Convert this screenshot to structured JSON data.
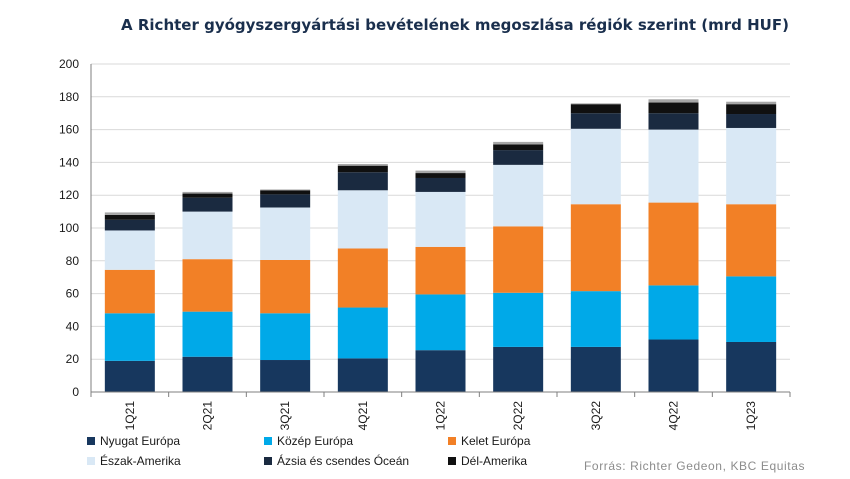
{
  "chart_data": {
    "type": "bar",
    "stacked": true,
    "title": "A Richter gyógyszergyártási bevételének megoszlása régiók szerint (mrd HUF)",
    "categories": [
      "1Q21",
      "2Q21",
      "3Q21",
      "4Q21",
      "1Q22",
      "2Q22",
      "3Q22",
      "4Q22",
      "1Q23"
    ],
    "series": [
      {
        "name": "Nyugat Európa",
        "color": "#17375e",
        "values": [
          19,
          21.5,
          19.5,
          20.5,
          25.5,
          27.5,
          27.5,
          32,
          30.5
        ]
      },
      {
        "name": "Közép Európa",
        "color": "#00a9e8",
        "values": [
          29,
          27.5,
          28.5,
          31,
          34,
          33,
          34,
          33,
          40
        ]
      },
      {
        "name": "Kelet Európa",
        "color": "#f28026",
        "values": [
          26.5,
          32,
          32.5,
          36,
          29,
          40.5,
          53,
          50.5,
          44
        ]
      },
      {
        "name": "Észak-Amerika",
        "color": "#d9e8f5",
        "values": [
          24,
          29,
          32,
          35.5,
          33.5,
          37.5,
          46,
          44.5,
          46.5
        ]
      },
      {
        "name": "Ázsia és csendes Óceán",
        "color": "#1a2a40",
        "values": [
          6.5,
          8.5,
          8,
          11,
          8.5,
          9,
          9.5,
          10,
          8.5
        ]
      },
      {
        "name": "Dél-Amerika",
        "color": "#101010",
        "values": [
          3,
          2.5,
          2.5,
          4,
          3,
          3.5,
          5.5,
          6.5,
          6
        ]
      },
      {
        "name": "",
        "color": "#a6a6a6",
        "values": [
          1.5,
          1,
          0.5,
          1,
          1.5,
          1.5,
          0.5,
          2,
          1.5
        ]
      }
    ],
    "ylim": [
      0,
      200
    ],
    "yticks": [
      0,
      20,
      40,
      60,
      80,
      100,
      120,
      140,
      160,
      180,
      200
    ],
    "grid": true,
    "legend_position": "bottom-left"
  },
  "source": "Forrás: Richter Gedeon, KBC Equitas"
}
